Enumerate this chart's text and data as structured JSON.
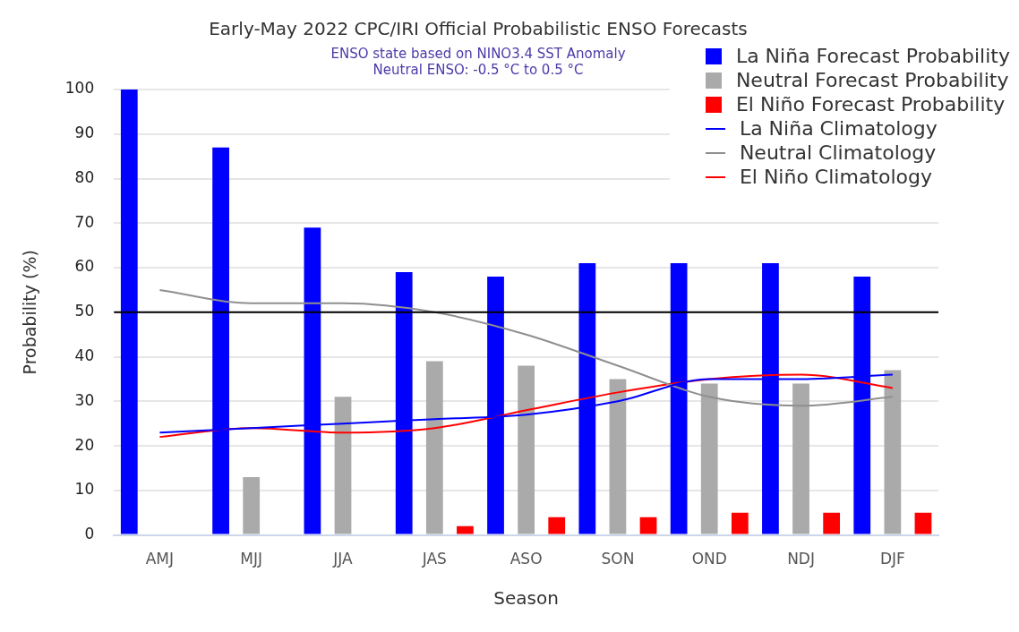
{
  "chart_data": {
    "type": "bar",
    "title": "Early-May 2022 CPC/IRI Official Probabilistic ENSO Forecasts",
    "subtitle": "ENSO state based on NINO3.4 SST Anomaly",
    "annotations": [
      "Neutral ENSO: -0.5 °C to 0.5 °C"
    ],
    "xlabel": "Season",
    "ylabel": "Probability (%)",
    "categories": [
      "AMJ",
      "MJJ",
      "JJA",
      "JAS",
      "ASO",
      "SON",
      "OND",
      "NDJ",
      "DJF"
    ],
    "series": [
      {
        "name": "La Niña Forecast Probability",
        "color": "#0000ff",
        "values": [
          100,
          87,
          69,
          59,
          58,
          61,
          61,
          61,
          58
        ]
      },
      {
        "name": "Neutral Forecast Probability",
        "color": "#aaaaaa",
        "values": [
          0,
          13,
          31,
          39,
          38,
          35,
          34,
          34,
          37
        ]
      },
      {
        "name": "El Niño Forecast Probability",
        "color": "#ff0000",
        "values": [
          0,
          0,
          0,
          2,
          4,
          4,
          5,
          5,
          5
        ]
      },
      {
        "name": "La Niña Climatology",
        "type": "line",
        "color": "#0000ff",
        "values": [
          23,
          24,
          25,
          26,
          27,
          30,
          35,
          35,
          36
        ]
      },
      {
        "name": "Neutral Climatology",
        "type": "line",
        "color": "#8f8f8f",
        "values": [
          55,
          52,
          52,
          50,
          45,
          38,
          31,
          29,
          31
        ]
      },
      {
        "name": "El Niño Climatology",
        "type": "line",
        "color": "#ff0000",
        "values": [
          22,
          24,
          23,
          24,
          28,
          32,
          35,
          36,
          33
        ]
      }
    ],
    "ylim": [
      0,
      100
    ],
    "yticks": [
      0,
      10,
      20,
      30,
      40,
      50,
      60,
      70,
      80,
      90,
      100
    ],
    "grid": "y",
    "legend": "top right",
    "marker": "none",
    "ref_lines": [
      {
        "axis": "y",
        "value": 50,
        "color": "#000000"
      }
    ]
  }
}
